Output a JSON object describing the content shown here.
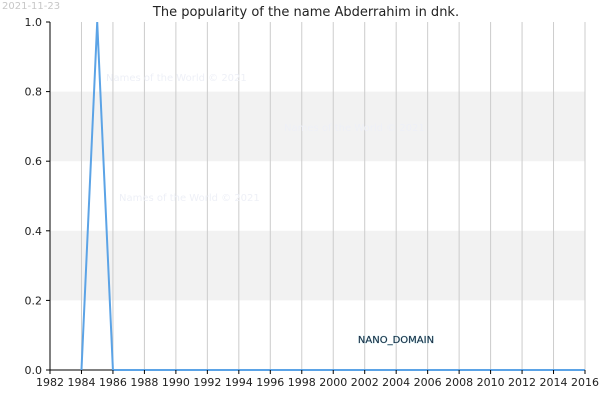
{
  "timestamp": "2021-11-23",
  "watermark": "Names of the World © 2021",
  "badge": "NANO_DOMAIN",
  "colors": {
    "line": "#5ba3e6",
    "band": "#f2f2f2",
    "grid": "#cccccc",
    "axis": "#000000"
  },
  "chart_data": {
    "type": "line",
    "title": "The popularity of the name Abderrahim in dnk.",
    "xlabel": "",
    "ylabel": "",
    "xlim": [
      1982,
      2016
    ],
    "ylim": [
      0,
      1.0
    ],
    "x_ticks": [
      "1982",
      "1984",
      "1986",
      "1988",
      "1990",
      "1992",
      "1994",
      "1996",
      "1998",
      "2000",
      "2002",
      "2004",
      "2006",
      "2008",
      "2010",
      "2012",
      "2014",
      "2016"
    ],
    "y_ticks": [
      "0.0",
      "0.2",
      "0.4",
      "0.6",
      "0.8",
      "1.0"
    ],
    "grid": true,
    "series": [
      {
        "x": [
          1982,
          1983,
          1984,
          1985,
          1986,
          1987,
          1988,
          1989,
          1990,
          1991,
          1992,
          1993,
          1994,
          1995,
          1996,
          1997,
          1998,
          1999,
          2000,
          2001,
          2002,
          2003,
          2004,
          2005,
          2006,
          2007,
          2008,
          2009,
          2010,
          2011,
          2012,
          2013,
          2014,
          2015,
          2016
        ],
        "values": [
          null,
          null,
          0,
          1.0,
          0,
          0,
          0,
          0,
          0,
          0,
          0,
          0,
          0,
          0,
          0,
          0,
          0,
          0,
          0,
          0,
          0,
          0,
          0,
          0,
          0,
          0,
          0,
          0,
          0,
          0,
          0,
          0,
          0,
          0,
          0
        ]
      }
    ]
  }
}
